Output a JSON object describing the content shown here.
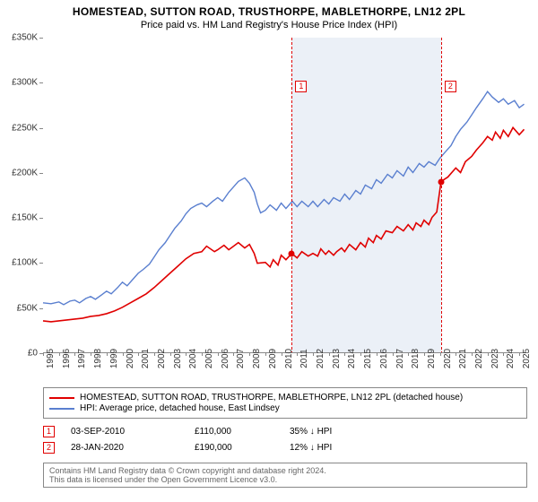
{
  "title": "HOMESTEAD, SUTTON ROAD, TRUSTHORPE, MABLETHORPE, LN12 2PL",
  "subtitle": "Price paid vs. HM Land Registry's House Price Index (HPI)",
  "chart": {
    "type": "line",
    "background_color": "#ffffff",
    "shade_color": "#dbe3f0",
    "xlim": [
      1995,
      2025.5
    ],
    "ylim": [
      0,
      350000
    ],
    "ytick_step": 50000,
    "yticks": [
      "£0",
      "£50K",
      "£100K",
      "£150K",
      "£200K",
      "£250K",
      "£300K",
      "£350K"
    ],
    "xticks": [
      "1995",
      "1996",
      "1997",
      "1998",
      "1999",
      "2000",
      "2001",
      "2002",
      "2003",
      "2004",
      "2005",
      "2006",
      "2007",
      "2008",
      "2009",
      "2010",
      "2011",
      "2012",
      "2013",
      "2014",
      "2015",
      "2016",
      "2017",
      "2018",
      "2019",
      "2020",
      "2021",
      "2022",
      "2023",
      "2024",
      "2025"
    ],
    "shade_start_x": 2010.67,
    "shade_end_x": 2020.07,
    "series": [
      {
        "name": "property",
        "label": "HOMESTEAD, SUTTON ROAD, TRUSTHORPE, MABLETHORPE, LN12 2PL (detached house)",
        "color": "#e00000",
        "line_width": 1.6,
        "points": [
          [
            1995,
            35000
          ],
          [
            1995.5,
            34000
          ],
          [
            1996,
            35000
          ],
          [
            1996.5,
            36000
          ],
          [
            1997,
            37000
          ],
          [
            1997.5,
            38000
          ],
          [
            1998,
            40000
          ],
          [
            1998.5,
            41000
          ],
          [
            1999,
            43000
          ],
          [
            1999.5,
            46000
          ],
          [
            2000,
            50000
          ],
          [
            2000.5,
            55000
          ],
          [
            2001,
            60000
          ],
          [
            2001.5,
            65000
          ],
          [
            2002,
            72000
          ],
          [
            2002.5,
            80000
          ],
          [
            2003,
            88000
          ],
          [
            2003.5,
            96000
          ],
          [
            2004,
            104000
          ],
          [
            2004.5,
            110000
          ],
          [
            2005,
            112000
          ],
          [
            2005.3,
            118000
          ],
          [
            2005.8,
            112000
          ],
          [
            2006,
            114000
          ],
          [
            2006.4,
            119000
          ],
          [
            2006.7,
            114000
          ],
          [
            2007,
            118000
          ],
          [
            2007.3,
            122000
          ],
          [
            2007.7,
            116000
          ],
          [
            2008,
            120000
          ],
          [
            2008.3,
            110000
          ],
          [
            2008.5,
            99000
          ],
          [
            2009,
            100000
          ],
          [
            2009.3,
            95000
          ],
          [
            2009.5,
            103000
          ],
          [
            2009.8,
            97000
          ],
          [
            2010,
            108000
          ],
          [
            2010.3,
            103000
          ],
          [
            2010.67,
            110000
          ],
          [
            2011,
            105000
          ],
          [
            2011.3,
            112000
          ],
          [
            2011.7,
            107000
          ],
          [
            2012,
            110000
          ],
          [
            2012.3,
            107000
          ],
          [
            2012.5,
            115000
          ],
          [
            2012.8,
            109000
          ],
          [
            2013,
            113000
          ],
          [
            2013.3,
            108000
          ],
          [
            2013.5,
            112000
          ],
          [
            2013.8,
            116000
          ],
          [
            2014,
            112000
          ],
          [
            2014.3,
            120000
          ],
          [
            2014.7,
            114000
          ],
          [
            2015,
            122000
          ],
          [
            2015.3,
            117000
          ],
          [
            2015.5,
            127000
          ],
          [
            2015.8,
            122000
          ],
          [
            2016,
            130000
          ],
          [
            2016.3,
            126000
          ],
          [
            2016.6,
            135000
          ],
          [
            2017,
            133000
          ],
          [
            2017.3,
            140000
          ],
          [
            2017.7,
            135000
          ],
          [
            2018,
            142000
          ],
          [
            2018.3,
            136000
          ],
          [
            2018.5,
            144000
          ],
          [
            2018.8,
            140000
          ],
          [
            2019,
            147000
          ],
          [
            2019.3,
            142000
          ],
          [
            2019.5,
            150000
          ],
          [
            2019.8,
            156000
          ],
          [
            2020.07,
            190000
          ],
          [
            2020.5,
            195000
          ],
          [
            2021,
            205000
          ],
          [
            2021.3,
            200000
          ],
          [
            2021.6,
            212000
          ],
          [
            2022,
            218000
          ],
          [
            2022.3,
            225000
          ],
          [
            2022.7,
            233000
          ],
          [
            2023,
            240000
          ],
          [
            2023.3,
            236000
          ],
          [
            2023.5,
            245000
          ],
          [
            2023.8,
            238000
          ],
          [
            2024,
            247000
          ],
          [
            2024.3,
            240000
          ],
          [
            2024.6,
            250000
          ],
          [
            2025,
            242000
          ],
          [
            2025.3,
            248000
          ]
        ]
      },
      {
        "name": "hpi",
        "label": "HPI: Average price, detached house, East Lindsey",
        "color": "#5a7fcf",
        "line_width": 1.4,
        "points": [
          [
            1995,
            55000
          ],
          [
            1995.5,
            54000
          ],
          [
            1996,
            56000
          ],
          [
            1996.3,
            53000
          ],
          [
            1996.7,
            57000
          ],
          [
            1997,
            58000
          ],
          [
            1997.3,
            55000
          ],
          [
            1997.7,
            60000
          ],
          [
            1998,
            62000
          ],
          [
            1998.3,
            59000
          ],
          [
            1998.7,
            64000
          ],
          [
            1999,
            68000
          ],
          [
            1999.3,
            65000
          ],
          [
            1999.7,
            72000
          ],
          [
            2000,
            78000
          ],
          [
            2000.3,
            74000
          ],
          [
            2000.7,
            82000
          ],
          [
            2001,
            88000
          ],
          [
            2001.3,
            92000
          ],
          [
            2001.7,
            98000
          ],
          [
            2002,
            106000
          ],
          [
            2002.3,
            114000
          ],
          [
            2002.7,
            122000
          ],
          [
            2003,
            130000
          ],
          [
            2003.3,
            138000
          ],
          [
            2003.7,
            146000
          ],
          [
            2004,
            154000
          ],
          [
            2004.3,
            160000
          ],
          [
            2004.7,
            164000
          ],
          [
            2005,
            166000
          ],
          [
            2005.3,
            162000
          ],
          [
            2005.7,
            168000
          ],
          [
            2006,
            172000
          ],
          [
            2006.3,
            168000
          ],
          [
            2006.7,
            178000
          ],
          [
            2007,
            184000
          ],
          [
            2007.3,
            190000
          ],
          [
            2007.7,
            194000
          ],
          [
            2008,
            188000
          ],
          [
            2008.3,
            178000
          ],
          [
            2008.5,
            165000
          ],
          [
            2008.7,
            155000
          ],
          [
            2009,
            158000
          ],
          [
            2009.3,
            164000
          ],
          [
            2009.7,
            158000
          ],
          [
            2010,
            166000
          ],
          [
            2010.3,
            160000
          ],
          [
            2010.7,
            168000
          ],
          [
            2011,
            162000
          ],
          [
            2011.3,
            168000
          ],
          [
            2011.7,
            162000
          ],
          [
            2012,
            168000
          ],
          [
            2012.3,
            162000
          ],
          [
            2012.7,
            170000
          ],
          [
            2013,
            165000
          ],
          [
            2013.3,
            172000
          ],
          [
            2013.7,
            168000
          ],
          [
            2014,
            176000
          ],
          [
            2014.3,
            170000
          ],
          [
            2014.7,
            180000
          ],
          [
            2015,
            176000
          ],
          [
            2015.3,
            186000
          ],
          [
            2015.7,
            182000
          ],
          [
            2016,
            192000
          ],
          [
            2016.3,
            188000
          ],
          [
            2016.7,
            198000
          ],
          [
            2017,
            194000
          ],
          [
            2017.3,
            202000
          ],
          [
            2017.7,
            196000
          ],
          [
            2018,
            206000
          ],
          [
            2018.3,
            200000
          ],
          [
            2018.7,
            210000
          ],
          [
            2019,
            206000
          ],
          [
            2019.3,
            212000
          ],
          [
            2019.7,
            208000
          ],
          [
            2020,
            216000
          ],
          [
            2020.3,
            222000
          ],
          [
            2020.7,
            230000
          ],
          [
            2021,
            240000
          ],
          [
            2021.3,
            248000
          ],
          [
            2021.7,
            256000
          ],
          [
            2022,
            264000
          ],
          [
            2022.3,
            272000
          ],
          [
            2022.7,
            282000
          ],
          [
            2023,
            290000
          ],
          [
            2023.3,
            284000
          ],
          [
            2023.7,
            278000
          ],
          [
            2024,
            282000
          ],
          [
            2024.3,
            276000
          ],
          [
            2024.7,
            280000
          ],
          [
            2025,
            272000
          ],
          [
            2025.3,
            276000
          ]
        ]
      }
    ],
    "markers": [
      {
        "id": "1",
        "x": 2010.67,
        "y": 110000,
        "label_top": 48
      },
      {
        "id": "2",
        "x": 2020.07,
        "y": 190000,
        "label_top": 48
      }
    ]
  },
  "legend": {
    "items": [
      {
        "color": "#e00000",
        "label": "HOMESTEAD, SUTTON ROAD, TRUSTHORPE, MABLETHORPE, LN12 2PL (detached house)"
      },
      {
        "color": "#5a7fcf",
        "label": "HPI: Average price, detached house, East Lindsey"
      }
    ]
  },
  "callouts": [
    {
      "id": "1",
      "date": "03-SEP-2010",
      "price": "£110,000",
      "pct": "35% ↓ HPI"
    },
    {
      "id": "2",
      "date": "28-JAN-2020",
      "price": "£190,000",
      "pct": "12% ↓ HPI"
    }
  ],
  "footer": {
    "line1": "Contains HM Land Registry data © Crown copyright and database right 2024.",
    "line2": "This data is licensed under the Open Government Licence v3.0."
  }
}
